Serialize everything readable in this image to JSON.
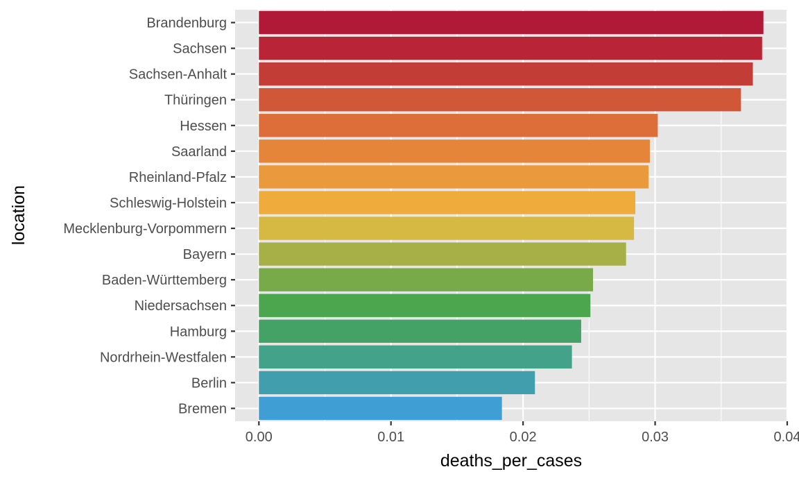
{
  "chart_data": {
    "type": "bar",
    "orientation": "horizontal",
    "xlabel": "deaths_per_cases",
    "ylabel": "location",
    "xlim": [
      -0.0018,
      0.04
    ],
    "x_ticks": [
      {
        "value": 0.0,
        "label": "0.00"
      },
      {
        "value": 0.01,
        "label": "0.01"
      },
      {
        "value": 0.02,
        "label": "0.02"
      },
      {
        "value": 0.03,
        "label": "0.03"
      },
      {
        "value": 0.04,
        "label": "0.04"
      }
    ],
    "grid": true,
    "legend": "none",
    "panel_color": "#e6e6e6",
    "grid_color": "#ffffff",
    "categories": [
      "Brandenburg",
      "Sachsen",
      "Sachsen-Anhalt",
      "Thüringen",
      "Hessen",
      "Saarland",
      "Rheinland-Pfalz",
      "Schleswig-Holstein",
      "Mecklenburg-Vorpommern",
      "Bayern",
      "Baden-Württemberg",
      "Niedersachsen",
      "Hamburg",
      "Nordrhein-Westfalen",
      "Berlin",
      "Bremen"
    ],
    "values": [
      0.0382,
      0.0381,
      0.0374,
      0.0365,
      0.0302,
      0.0296,
      0.0295,
      0.0285,
      0.0284,
      0.0278,
      0.0253,
      0.0251,
      0.0244,
      0.0237,
      0.0209,
      0.0184
    ],
    "colors": [
      "#b01a37",
      "#b92537",
      "#c33d37",
      "#d05738",
      "#de6e39",
      "#e4853a",
      "#ea993c",
      "#f0ab3d",
      "#d6b942",
      "#a6b047",
      "#78aa4a",
      "#4ba64d",
      "#45a267",
      "#42a38a",
      "#409ead",
      "#3f9ed3"
    ]
  }
}
